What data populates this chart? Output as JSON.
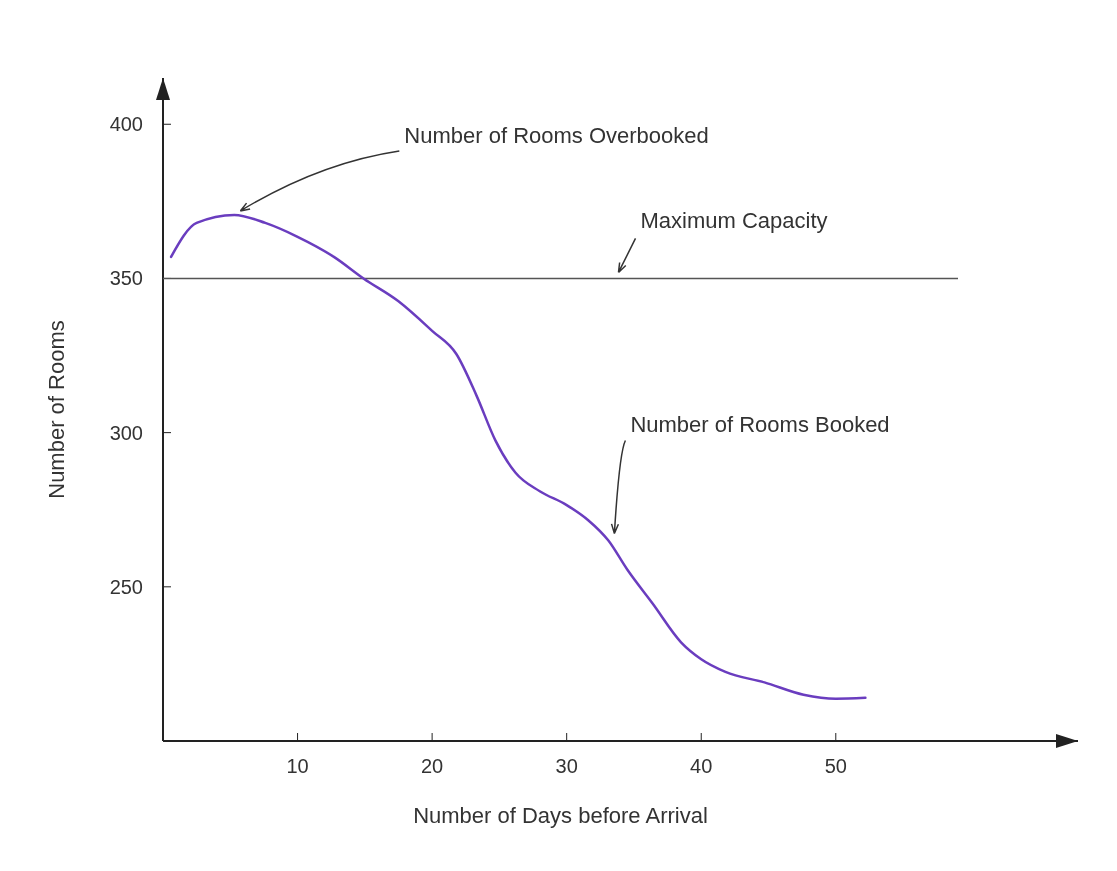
{
  "chart_data": {
    "type": "line",
    "xlabel": "Number of Days before Arrival",
    "ylabel": "Number of Rooms",
    "x": [
      0.6,
      2.5,
      5.3,
      7.6,
      10,
      12.7,
      14.9,
      17.5,
      20,
      21.8,
      23.3,
      24.7,
      26.2,
      28,
      30,
      31.6,
      33.1,
      34.5,
      36.4,
      38.5,
      40,
      41.8,
      44.7,
      47.6,
      50,
      52.2
    ],
    "series": [
      {
        "color": "#6a3dbf",
        "values": [
          357,
          368,
          370.6,
          368,
          363.5,
          357,
          350,
          342.6,
          333,
          325.5,
          312,
          297.5,
          287,
          281,
          276.5,
          271.6,
          265,
          255.6,
          244.5,
          232,
          226.5,
          222.4,
          219,
          215,
          213.7,
          214
        ]
      }
    ],
    "xlim": [
      0,
      68
    ],
    "ylim": [
      200,
      415
    ],
    "xticks": [
      10,
      20,
      30,
      40,
      50
    ],
    "yticks": [
      250,
      300,
      350,
      400
    ],
    "ref_lines": [
      {
        "axis": "y",
        "value": 350,
        "label": "Maximum Capacity",
        "color": "#555555"
      }
    ],
    "annotations": [
      {
        "text": "Number of Rooms Overbooked",
        "x": 5.3,
        "y": 370.6
      },
      {
        "text": "Number of Rooms Booked",
        "x": 33.1,
        "y": 266
      }
    ],
    "grid": false,
    "marker": "none",
    "line_style": "solid"
  }
}
